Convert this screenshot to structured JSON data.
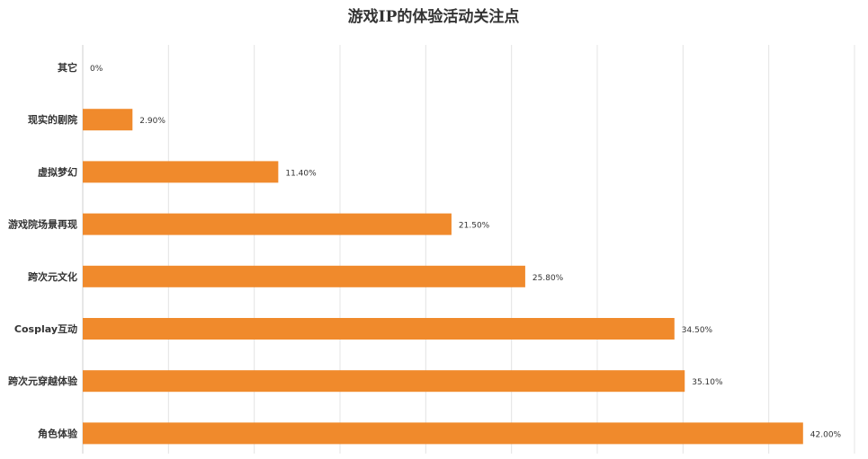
{
  "chart_data": {
    "type": "bar",
    "orientation": "horizontal",
    "title": "游戏IP的体验活动关注点",
    "categories": [
      "其它",
      "现实的剧院",
      "虚拟梦幻",
      "游戏院场景再现",
      "跨次元文化",
      "Cosplay互动",
      "跨次元穿越体验",
      "角色体验"
    ],
    "values": [
      0,
      2.9,
      11.4,
      21.5,
      25.8,
      34.5,
      35.1,
      42.0
    ],
    "value_labels": [
      "0%",
      "2.90%",
      "11.40%",
      "21.50%",
      "25.80%",
      "34.50%",
      "35.10%",
      "42.00%"
    ],
    "xlim": [
      0,
      45
    ],
    "unit": "%",
    "grid": true,
    "legend": "none",
    "colors": {
      "bar": "#f08a2c",
      "grid": "#e4e4e4",
      "text": "#333333"
    }
  }
}
